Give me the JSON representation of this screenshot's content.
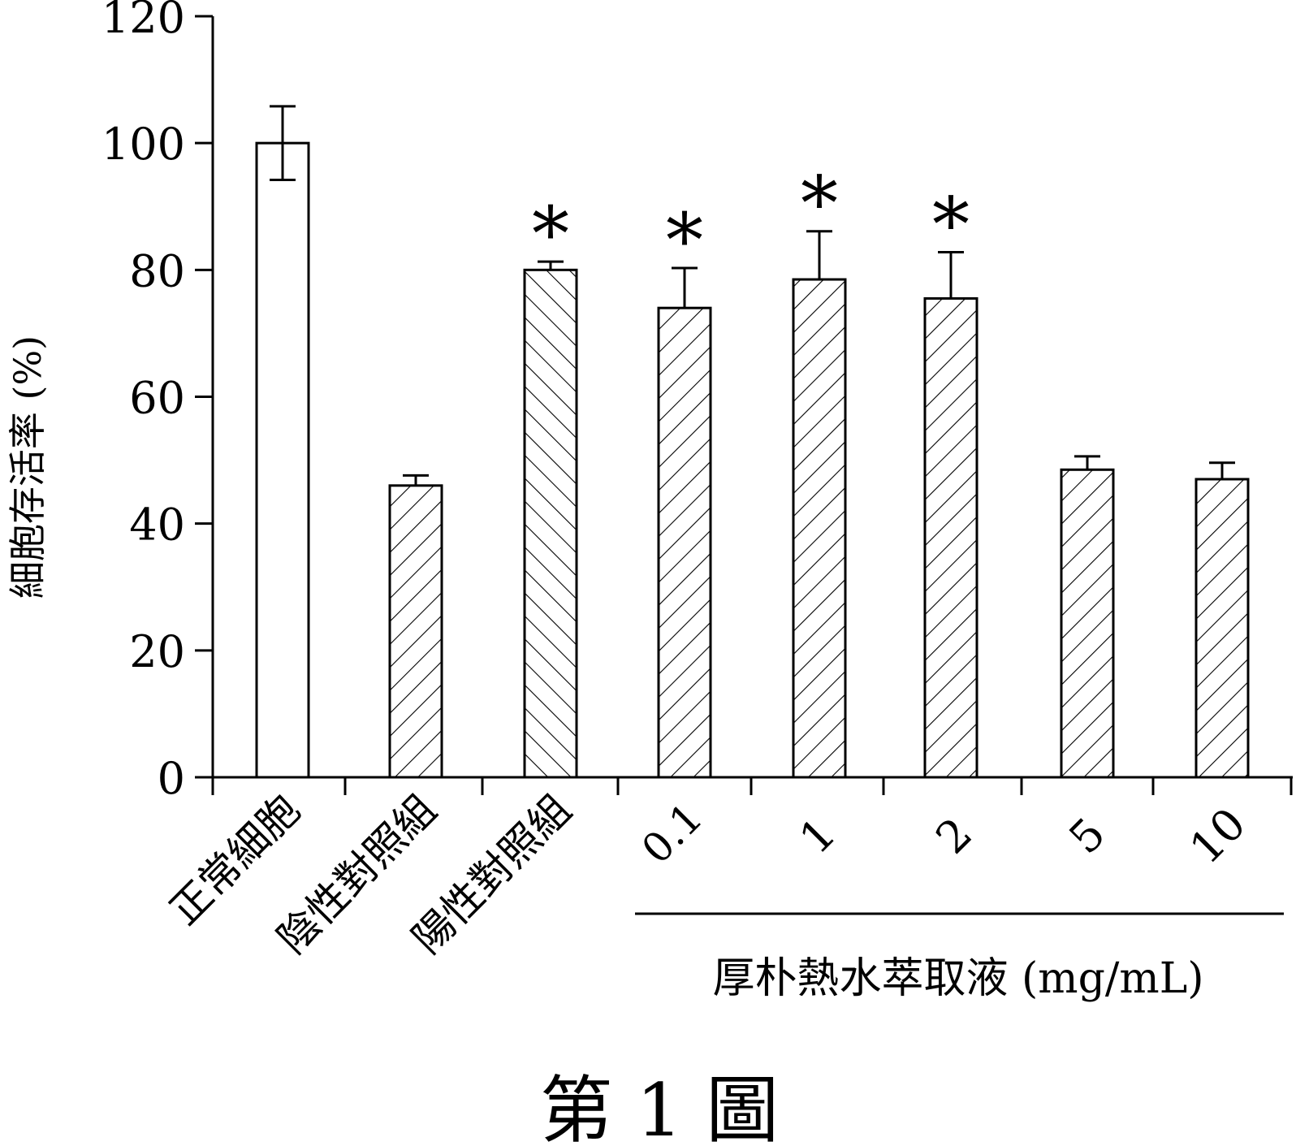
{
  "figure_caption": "第 1 圖",
  "chart_data": {
    "type": "bar",
    "title": "",
    "ylabel": "細胞存活率 (%)",
    "xlabel": "",
    "ylim": [
      0,
      120
    ],
    "yticks": [
      0,
      20,
      40,
      60,
      80,
      100,
      120
    ],
    "grid": false,
    "categories": [
      "正常細胞",
      "陰性對照組",
      "陽性對照組",
      "0.1",
      "1",
      "2",
      "5",
      "10"
    ],
    "values": [
      100,
      46,
      80,
      74,
      78.5,
      75.5,
      48.5,
      47
    ],
    "errors": [
      5.8,
      1.6,
      1.3,
      6.3,
      7.6,
      7.3,
      2.1,
      2.6
    ],
    "significance": [
      "",
      "",
      "*",
      "*",
      "*",
      "*",
      "",
      ""
    ],
    "fill_patterns": [
      "none",
      "hatch-forward",
      "hatch-back",
      "hatch-forward",
      "hatch-forward",
      "hatch-forward",
      "hatch-forward",
      "hatch-forward"
    ],
    "group_label": {
      "text": "厚朴熱水萃取液 (mg/mL)",
      "categories": [
        "0.1",
        "1",
        "2",
        "5",
        "10"
      ]
    },
    "colors": {
      "stroke": "#000000",
      "fill": "#ffffff"
    }
  }
}
